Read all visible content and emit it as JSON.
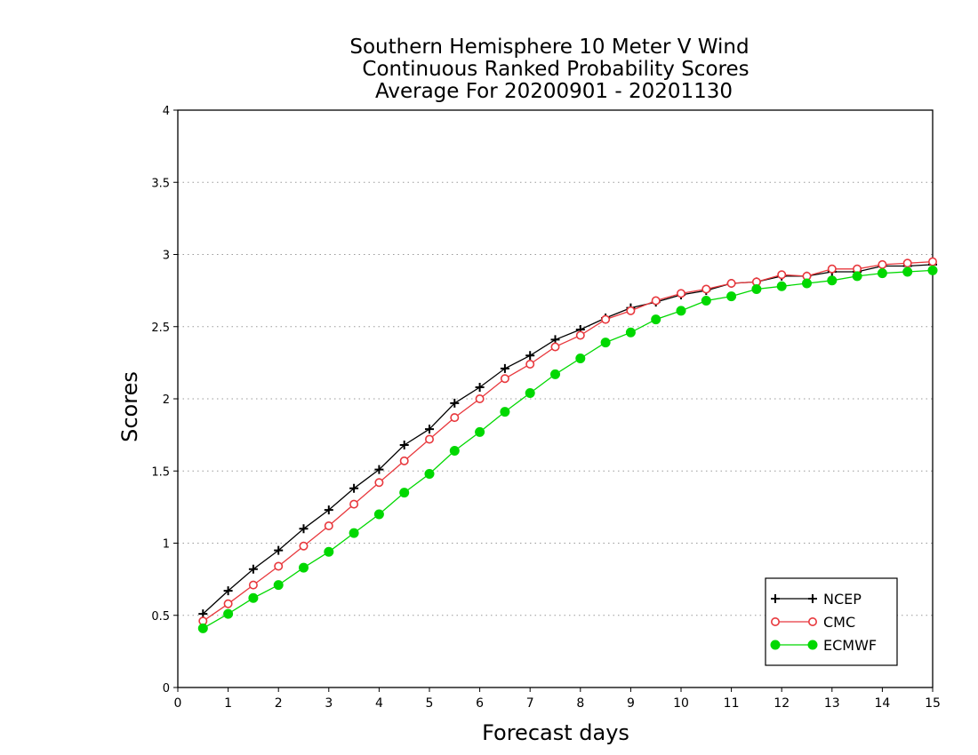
{
  "chart_data": {
    "type": "line",
    "title": [
      "Southern Hemisphere 10 Meter V Wind",
      "Continuous Ranked Probability Scores",
      "Average For 20200901 - 20201130"
    ],
    "xlabel": "Forecast days",
    "ylabel": "Scores",
    "xlim": [
      0,
      15
    ],
    "ylim": [
      0,
      4
    ],
    "xticks": [
      0,
      1,
      2,
      3,
      4,
      5,
      6,
      7,
      8,
      9,
      10,
      11,
      12,
      13,
      14,
      15
    ],
    "yticks": [
      0,
      0.5,
      1,
      1.5,
      2,
      2.5,
      3,
      3.5,
      4
    ],
    "ytick_labels": [
      "0",
      "0.5",
      "1",
      "1.5",
      "2",
      "2.5",
      "3",
      "3.5",
      "4"
    ],
    "grid": "horizontal dotted",
    "legend_position": "bottom-right",
    "x": [
      0.5,
      1,
      1.5,
      2,
      2.5,
      3,
      3.5,
      4,
      4.5,
      5,
      5.5,
      6,
      6.5,
      7,
      7.5,
      8,
      8.5,
      9,
      9.5,
      10,
      10.5,
      11,
      11.5,
      12,
      12.5,
      13,
      13.5,
      14,
      14.5,
      15
    ],
    "series": [
      {
        "name": "NCEP",
        "color": "#000000",
        "marker": "plus",
        "values": [
          0.51,
          0.67,
          0.82,
          0.95,
          1.1,
          1.23,
          1.38,
          1.51,
          1.68,
          1.79,
          1.97,
          2.08,
          2.21,
          2.3,
          2.41,
          2.48,
          2.56,
          2.63,
          2.67,
          2.72,
          2.75,
          2.8,
          2.81,
          2.85,
          2.85,
          2.88,
          2.88,
          2.92,
          2.92,
          2.93
        ]
      },
      {
        "name": "CMC",
        "color": "#e8383d",
        "marker": "open-circle",
        "values": [
          0.46,
          0.58,
          0.71,
          0.84,
          0.98,
          1.12,
          1.27,
          1.42,
          1.57,
          1.72,
          1.87,
          2.0,
          2.14,
          2.24,
          2.36,
          2.44,
          2.55,
          2.61,
          2.68,
          2.73,
          2.76,
          2.8,
          2.81,
          2.86,
          2.85,
          2.9,
          2.9,
          2.93,
          2.94,
          2.95
        ]
      },
      {
        "name": "ECMWF",
        "color": "#00d800",
        "marker": "filled-circle",
        "values": [
          0.41,
          0.51,
          0.62,
          0.71,
          0.83,
          0.94,
          1.07,
          1.2,
          1.35,
          1.48,
          1.64,
          1.77,
          1.91,
          2.04,
          2.17,
          2.28,
          2.39,
          2.46,
          2.55,
          2.61,
          2.68,
          2.71,
          2.76,
          2.78,
          2.8,
          2.82,
          2.85,
          2.87,
          2.88,
          2.89
        ]
      }
    ]
  }
}
